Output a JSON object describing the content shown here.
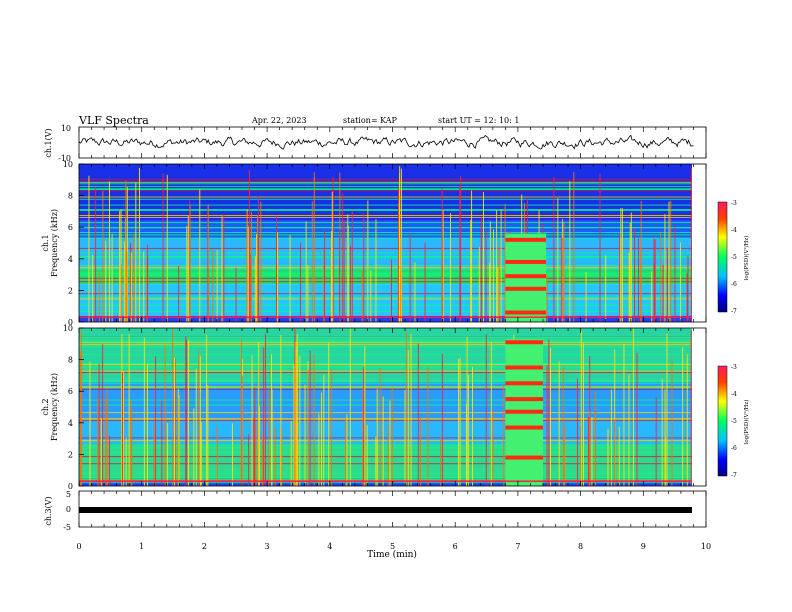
{
  "header": {
    "title": "VLF Spectra",
    "date": "Apr. 22, 2023",
    "station": "station= KAP",
    "start": "start  UT =   12: 10: 1"
  },
  "chart_data": [
    {
      "type": "line",
      "id": "ch1_waveform",
      "ylabel": "ch.1(V)",
      "ylim": [
        -10,
        10
      ],
      "yticks": [
        "10",
        "-10"
      ],
      "xlim": [
        0,
        10
      ],
      "description_values": "noisy waveform oscillating roughly between -5 and 6 V across 0-9.8 min"
    },
    {
      "type": "heatmap",
      "id": "ch1_spectrogram",
      "ylabel": "ch.1\nFrequency (kHz)",
      "ylim": [
        0,
        10
      ],
      "yticks": [
        "0",
        "2",
        "4",
        "6",
        "8",
        "10"
      ],
      "xlim": [
        0,
        10
      ],
      "colorbar": {
        "label": "log(PSD)(V²/Hz)",
        "range": [
          -7,
          -3
        ],
        "ticks": [
          "-3",
          "-4",
          "-5",
          "-6",
          "-7"
        ]
      },
      "event": {
        "t_start": 6.8,
        "t_end": 7.45,
        "lines_khz": [
          0.6,
          2.1,
          2.9,
          3.8,
          5.2
        ]
      }
    },
    {
      "type": "heatmap",
      "id": "ch2_spectrogram",
      "ylabel": "ch.2\nFrequency (kHz)",
      "ylim": [
        0,
        10
      ],
      "yticks": [
        "0",
        "2",
        "4",
        "6",
        "8",
        "10"
      ],
      "xlim": [
        0,
        10
      ],
      "colorbar": {
        "label": "log(PSD)(V²/Hz)",
        "range": [
          -7,
          -3
        ],
        "ticks": [
          "-3",
          "-4",
          "-5",
          "-6",
          "-7"
        ]
      },
      "event": {
        "t_start": 6.8,
        "t_end": 7.4,
        "lines_khz": [
          1.8,
          3.7,
          4.7,
          5.5,
          6.5,
          7.5,
          9.1
        ]
      }
    },
    {
      "type": "line",
      "id": "ch3_waveform",
      "ylabel": "ch.3(V)",
      "ylim": [
        -5,
        5
      ],
      "yticks": [
        "5",
        "0",
        "-5"
      ],
      "xlim": [
        0,
        10
      ],
      "description_values": "flat band near 0 V from 0 to 9.8 min"
    }
  ],
  "xaxis": {
    "label": "Time (min)",
    "ticks": [
      "0",
      "1",
      "2",
      "3",
      "4",
      "5",
      "6",
      "7",
      "8",
      "9",
      "10"
    ],
    "range": [
      0,
      10
    ]
  },
  "colors": {
    "trace": "#000000",
    "bg_blue": "#1a3cff",
    "mid_green": "#22e060",
    "hot_red": "#ff1a00"
  }
}
